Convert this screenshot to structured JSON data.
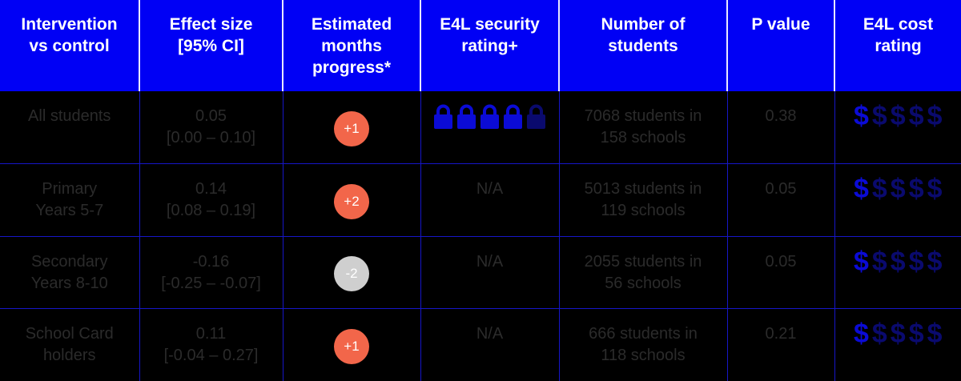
{
  "colors": {
    "header_bg": "#0000f5",
    "header_text": "#ffffff",
    "cell_bg": "#000000",
    "cell_text": "#2b2b2b",
    "grid_line": "#1616c8",
    "badge_positive": "#f2664a",
    "badge_negative": "#cfcfcf",
    "icon_active": "#0b0bd6",
    "icon_inactive": "#0a0a6e"
  },
  "headers": [
    [
      "Intervention",
      "vs control"
    ],
    [
      "Effect size",
      "[95% CI]"
    ],
    [
      "Estimated",
      "months",
      "progress*"
    ],
    [
      "E4L security",
      "rating+"
    ],
    [
      "Number of",
      "students"
    ],
    [
      "P value"
    ],
    [
      "E4L cost",
      "rating"
    ]
  ],
  "rows": [
    {
      "group": [
        "All students"
      ],
      "effect": "0.05",
      "ci": "[0.00 – 0.10]",
      "months": "+1",
      "months_sign": "positive",
      "security": "",
      "security_icons": [
        "lock",
        "lock",
        "lock",
        "lock",
        "lock"
      ],
      "security_level": 4,
      "security_max": 5,
      "students": [
        "7068 students in",
        "158 schools"
      ],
      "p_value": "0.38",
      "cost_level": 1,
      "cost_max": 5
    },
    {
      "group": [
        "Primary",
        "Years 5-7"
      ],
      "effect": "0.14",
      "ci": "[0.08 – 0.19]",
      "months": "+2",
      "months_sign": "positive",
      "security": "N/A",
      "students": [
        "5013 students in",
        "119 schools"
      ],
      "p_value": "0.05",
      "cost_level": 1,
      "cost_max": 5
    },
    {
      "group": [
        "Secondary",
        "Years 8-10"
      ],
      "effect": "-0.16",
      "ci": "[-0.25 – -0.07]",
      "months": "-2",
      "months_sign": "negative",
      "security": "N/A",
      "students": [
        "2055 students in",
        "56 schools"
      ],
      "p_value": "0.05",
      "cost_level": 1,
      "cost_max": 5
    },
    {
      "group": [
        "School Card",
        "holders"
      ],
      "effect": "0.11",
      "ci": "[-0.04 – 0.27]",
      "months": "+1",
      "months_sign": "positive",
      "security": "N/A",
      "students": [
        "666 students in",
        "118 schools"
      ],
      "p_value": "0.21",
      "cost_level": 1,
      "cost_max": 5
    }
  ],
  "cost_symbol": "$",
  "icons": {
    "lock": "padlock-icon",
    "dollar": "dollar-icon"
  }
}
